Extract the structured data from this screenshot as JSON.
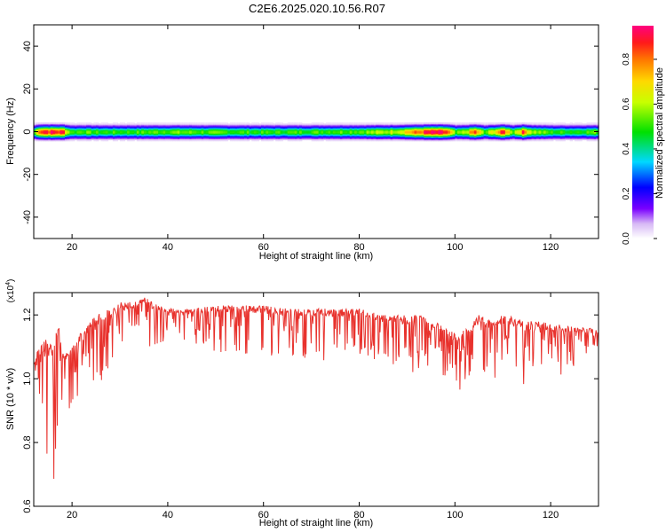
{
  "title": "C2E6.2025.020.10.56.R07",
  "chart_data": [
    {
      "type": "heatmap",
      "xlabel": "Height of straight line (km)",
      "ylabel": "Frequency (Hz)",
      "xlim": [
        12,
        130
      ],
      "ylim": [
        -50,
        50
      ],
      "xticks": [
        20,
        40,
        60,
        80,
        100,
        120
      ],
      "yticks": [
        -40,
        -20,
        0,
        20,
        40
      ],
      "colorbar": {
        "label": "Normalized spectral amplitude",
        "range": [
          0,
          0.95
        ],
        "ticks": [
          "0.0",
          "0.2",
          "0.4",
          "0.6",
          "0.8"
        ],
        "tick_values": [
          0.0,
          0.2,
          0.4,
          0.6,
          0.8
        ],
        "colormap": "rainbow (white → violet → blue → cyan → green → yellow → orange → red → magenta)"
      },
      "band": {
        "center_frequency_hz": 0,
        "approx_halfwidth_hz": 4,
        "amplitude_profile": {
          "x": [
            12,
            13,
            14,
            16,
            18,
            19,
            20,
            22,
            25,
            30,
            35,
            40,
            50,
            60,
            70,
            80,
            85,
            88,
            90,
            92,
            94,
            96,
            98,
            100,
            102,
            104,
            106,
            108,
            110,
            112,
            114,
            116,
            118,
            120,
            125,
            130
          ],
          "peak": [
            0.55,
            0.9,
            0.92,
            0.9,
            0.88,
            0.6,
            0.5,
            0.55,
            0.5,
            0.5,
            0.52,
            0.55,
            0.52,
            0.5,
            0.52,
            0.55,
            0.6,
            0.65,
            0.75,
            0.8,
            0.9,
            0.92,
            0.88,
            0.5,
            0.6,
            0.85,
            0.5,
            0.7,
            0.88,
            0.55,
            0.85,
            0.6,
            0.55,
            0.5,
            0.5,
            0.55
          ]
        }
      }
    },
    {
      "type": "line",
      "xlabel": "Height of straight line (km)",
      "ylabel": "SNR (10 * v/v)",
      "y_multiplier": "(x10^4)",
      "y_multiplier_base": "(x10",
      "y_multiplier_exp": "4",
      "y_multiplier_close": ")",
      "xlim": [
        12,
        130
      ],
      "ylim": [
        0.6,
        1.27
      ],
      "xticks": [
        20,
        40,
        60,
        80,
        100,
        120
      ],
      "yticks": [
        "0.6",
        "0.8",
        "1.0",
        "1.2"
      ],
      "ytick_values": [
        0.6,
        0.8,
        1.0,
        1.2
      ],
      "series": [
        {
          "color": "#e8322d",
          "envelope_x": [
            12,
            13,
            14,
            15,
            16,
            17,
            18,
            20,
            22,
            25,
            28,
            30,
            33,
            35,
            38,
            40,
            45,
            50,
            55,
            60,
            65,
            70,
            75,
            80,
            85,
            88,
            90,
            93,
            95,
            98,
            100,
            103,
            105,
            108,
            110,
            113,
            115,
            118,
            120,
            123,
            125,
            128,
            130
          ],
          "upper": [
            1.05,
            1.1,
            1.13,
            1.12,
            1.12,
            1.2,
            1.08,
            1.1,
            1.15,
            1.2,
            1.22,
            1.24,
            1.24,
            1.26,
            1.23,
            1.22,
            1.22,
            1.23,
            1.23,
            1.23,
            1.22,
            1.22,
            1.22,
            1.22,
            1.2,
            1.2,
            1.2,
            1.2,
            1.18,
            1.17,
            1.14,
            1.16,
            1.2,
            1.18,
            1.2,
            1.19,
            1.18,
            1.18,
            1.17,
            1.17,
            1.16,
            1.16,
            1.15
          ],
          "lower": [
            0.85,
            0.62,
            0.78,
            0.75,
            0.65,
            0.8,
            0.88,
            0.9,
            0.95,
            0.98,
            1.02,
            1.06,
            1.1,
            1.1,
            1.1,
            1.12,
            1.1,
            1.08,
            1.08,
            1.06,
            1.06,
            1.06,
            1.05,
            1.06,
            1.05,
            1.02,
            1.0,
            1.04,
            1.04,
            1.0,
            0.93,
            1.0,
            1.02,
            0.98,
            1.02,
            1.02,
            0.94,
            1.02,
            1.04,
            1.0,
            1.04,
            1.05,
            1.06
          ]
        }
      ]
    }
  ]
}
